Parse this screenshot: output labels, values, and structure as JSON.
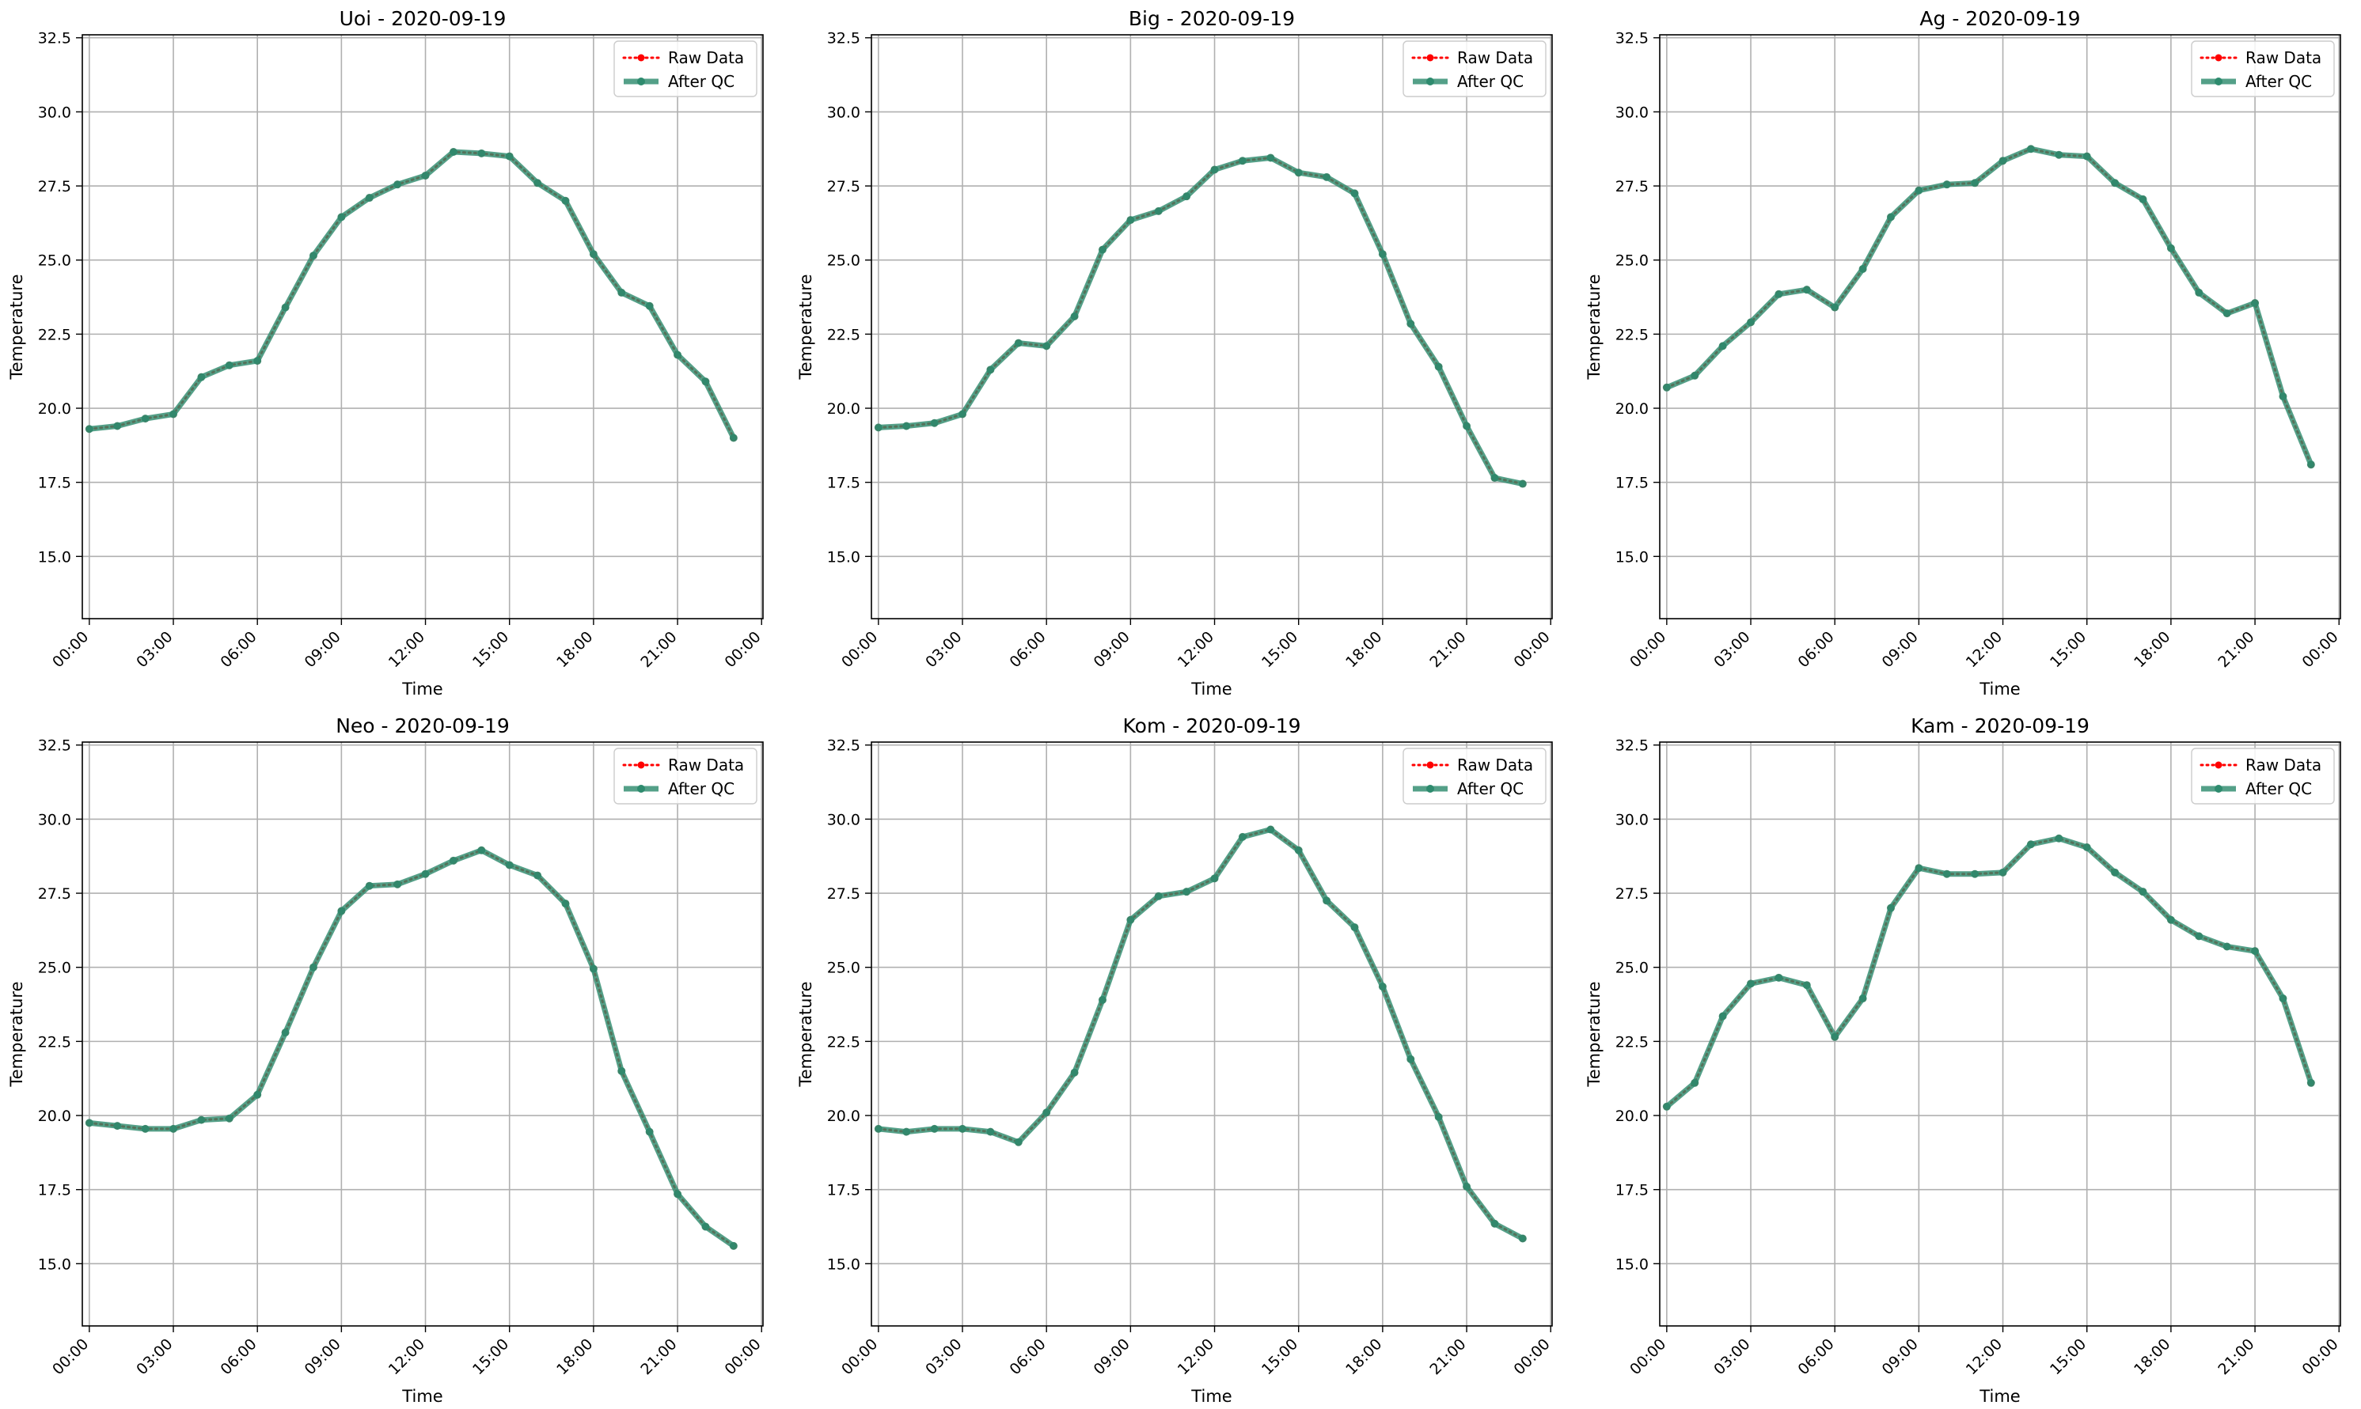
{
  "figure": {
    "background": "#ffffff"
  },
  "style": {
    "raw_color": "#ff0000",
    "qc_color": "#2e8b6e",
    "grid_color": "#b0b0b0"
  },
  "chart_data": [
    {
      "type": "line",
      "title": "Uoi - 2020-09-19",
      "xlabel": "Time",
      "ylabel": "Temperature",
      "x_ticks": [
        "00:00",
        "03:00",
        "06:00",
        "09:00",
        "12:00",
        "15:00",
        "18:00",
        "21:00",
        "00:00"
      ],
      "y_ticks": [
        "15.0",
        "17.5",
        "20.0",
        "22.5",
        "25.0",
        "27.5",
        "30.0",
        "32.5"
      ],
      "xlim": [
        -0.25,
        24.05
      ],
      "ylim": [
        12.9,
        32.6
      ],
      "grid": true,
      "legend": "top-right",
      "x": [
        0,
        1,
        2,
        3,
        4,
        5,
        6,
        7,
        8,
        9,
        10,
        11,
        12,
        13,
        14,
        15,
        16,
        17,
        18,
        19,
        20,
        21,
        22,
        23
      ],
      "series": [
        {
          "name": "Raw Data",
          "style": "dotted",
          "marker": "dot",
          "values": [
            19.3,
            19.4,
            19.65,
            19.8,
            21.05,
            21.45,
            21.6,
            23.4,
            25.15,
            26.45,
            27.1,
            27.55,
            27.85,
            28.65,
            28.6,
            28.5,
            27.6,
            27.0,
            25.2,
            23.9,
            23.45,
            21.8,
            20.9,
            19.0
          ]
        },
        {
          "name": "After QC",
          "style": "solid",
          "marker": "dot",
          "values": [
            19.3,
            19.4,
            19.65,
            19.8,
            21.05,
            21.45,
            21.6,
            23.4,
            25.15,
            26.45,
            27.1,
            27.55,
            27.85,
            28.65,
            28.6,
            28.5,
            27.6,
            27.0,
            25.2,
            23.9,
            23.45,
            21.8,
            20.9,
            19.0
          ]
        }
      ]
    },
    {
      "type": "line",
      "title": "Big - 2020-09-19",
      "xlabel": "Time",
      "ylabel": "Temperature",
      "x_ticks": [
        "00:00",
        "03:00",
        "06:00",
        "09:00",
        "12:00",
        "15:00",
        "18:00",
        "21:00",
        "00:00"
      ],
      "y_ticks": [
        "15.0",
        "17.5",
        "20.0",
        "22.5",
        "25.0",
        "27.5",
        "30.0",
        "32.5"
      ],
      "xlim": [
        -0.25,
        24.05
      ],
      "ylim": [
        12.9,
        32.6
      ],
      "grid": true,
      "legend": "top-right",
      "x": [
        0,
        1,
        2,
        3,
        4,
        5,
        6,
        7,
        8,
        9,
        10,
        11,
        12,
        13,
        14,
        15,
        16,
        17,
        18,
        19,
        20,
        21,
        22,
        23
      ],
      "series": [
        {
          "name": "Raw Data",
          "style": "dotted",
          "marker": "dot",
          "values": [
            19.35,
            19.4,
            19.5,
            19.8,
            21.3,
            22.2,
            22.1,
            23.1,
            25.35,
            26.35,
            26.65,
            27.15,
            28.05,
            28.35,
            28.45,
            27.95,
            27.8,
            27.25,
            25.2,
            22.85,
            21.4,
            19.4,
            17.65,
            17.45
          ]
        },
        {
          "name": "After QC",
          "style": "solid",
          "marker": "dot",
          "values": [
            19.35,
            19.4,
            19.5,
            19.8,
            21.3,
            22.2,
            22.1,
            23.1,
            25.35,
            26.35,
            26.65,
            27.15,
            28.05,
            28.35,
            28.45,
            27.95,
            27.8,
            27.25,
            25.2,
            22.85,
            21.4,
            19.4,
            17.65,
            17.45
          ]
        }
      ]
    },
    {
      "type": "line",
      "title": "Ag - 2020-09-19",
      "xlabel": "Time",
      "ylabel": "Temperature",
      "x_ticks": [
        "00:00",
        "03:00",
        "06:00",
        "09:00",
        "12:00",
        "15:00",
        "18:00",
        "21:00",
        "00:00"
      ],
      "y_ticks": [
        "15.0",
        "17.5",
        "20.0",
        "22.5",
        "25.0",
        "27.5",
        "30.0",
        "32.5"
      ],
      "xlim": [
        -0.25,
        24.05
      ],
      "ylim": [
        12.9,
        32.6
      ],
      "grid": true,
      "legend": "top-right",
      "x": [
        0,
        1,
        2,
        3,
        4,
        5,
        6,
        7,
        8,
        9,
        10,
        11,
        12,
        13,
        14,
        15,
        16,
        17,
        18,
        19,
        20,
        21,
        22,
        23
      ],
      "series": [
        {
          "name": "Raw Data",
          "style": "dotted",
          "marker": "dot",
          "values": [
            20.7,
            21.1,
            22.1,
            22.9,
            23.85,
            24.0,
            23.4,
            24.7,
            26.45,
            27.35,
            27.55,
            27.6,
            28.35,
            28.75,
            28.55,
            28.5,
            27.6,
            27.05,
            25.4,
            23.9,
            23.2,
            23.55,
            20.4,
            18.1
          ]
        },
        {
          "name": "After QC",
          "style": "solid",
          "marker": "dot",
          "values": [
            20.7,
            21.1,
            22.1,
            22.9,
            23.85,
            24.0,
            23.4,
            24.7,
            26.45,
            27.35,
            27.55,
            27.6,
            28.35,
            28.75,
            28.55,
            28.5,
            27.6,
            27.05,
            25.4,
            23.9,
            23.2,
            23.55,
            20.4,
            18.1
          ]
        }
      ]
    },
    {
      "type": "line",
      "title": "Neo - 2020-09-19",
      "xlabel": "Time",
      "ylabel": "Temperature",
      "x_ticks": [
        "00:00",
        "03:00",
        "06:00",
        "09:00",
        "12:00",
        "15:00",
        "18:00",
        "21:00",
        "00:00"
      ],
      "y_ticks": [
        "15.0",
        "17.5",
        "20.0",
        "22.5",
        "25.0",
        "27.5",
        "30.0",
        "32.5"
      ],
      "xlim": [
        -0.25,
        24.05
      ],
      "ylim": [
        12.9,
        32.6
      ],
      "grid": true,
      "legend": "top-right",
      "x": [
        0,
        1,
        2,
        3,
        4,
        5,
        6,
        7,
        8,
        9,
        10,
        11,
        12,
        13,
        14,
        15,
        16,
        17,
        18,
        19,
        20,
        21,
        22,
        23
      ],
      "series": [
        {
          "name": "Raw Data",
          "style": "dotted",
          "marker": "dot",
          "values": [
            19.75,
            19.65,
            19.55,
            19.55,
            19.85,
            19.9,
            20.7,
            22.8,
            25.0,
            26.9,
            27.75,
            27.8,
            28.15,
            28.6,
            28.95,
            28.45,
            28.1,
            27.15,
            24.95,
            21.5,
            19.45,
            17.35,
            16.25,
            15.6
          ]
        },
        {
          "name": "After QC",
          "style": "solid",
          "marker": "dot",
          "values": [
            19.75,
            19.65,
            19.55,
            19.55,
            19.85,
            19.9,
            20.7,
            22.8,
            25.0,
            26.9,
            27.75,
            27.8,
            28.15,
            28.6,
            28.95,
            28.45,
            28.1,
            27.15,
            24.95,
            21.5,
            19.45,
            17.35,
            16.25,
            15.6
          ]
        }
      ]
    },
    {
      "type": "line",
      "title": "Kom - 2020-09-19",
      "xlabel": "Time",
      "ylabel": "Temperature",
      "x_ticks": [
        "00:00",
        "03:00",
        "06:00",
        "09:00",
        "12:00",
        "15:00",
        "18:00",
        "21:00",
        "00:00"
      ],
      "y_ticks": [
        "15.0",
        "17.5",
        "20.0",
        "22.5",
        "25.0",
        "27.5",
        "30.0",
        "32.5"
      ],
      "xlim": [
        -0.25,
        24.05
      ],
      "ylim": [
        12.9,
        32.6
      ],
      "grid": true,
      "legend": "top-right",
      "x": [
        0,
        1,
        2,
        3,
        4,
        5,
        6,
        7,
        8,
        9,
        10,
        11,
        12,
        13,
        14,
        15,
        16,
        17,
        18,
        19,
        20,
        21,
        22,
        23
      ],
      "series": [
        {
          "name": "Raw Data",
          "style": "dotted",
          "marker": "dot",
          "values": [
            19.55,
            19.45,
            19.55,
            19.55,
            19.45,
            19.1,
            20.1,
            21.45,
            23.9,
            26.6,
            27.4,
            27.55,
            28.0,
            29.4,
            29.65,
            28.95,
            27.25,
            26.35,
            24.35,
            21.9,
            19.95,
            17.6,
            16.35,
            15.85
          ]
        },
        {
          "name": "After QC",
          "style": "solid",
          "marker": "dot",
          "values": [
            19.55,
            19.45,
            19.55,
            19.55,
            19.45,
            19.1,
            20.1,
            21.45,
            23.9,
            26.6,
            27.4,
            27.55,
            28.0,
            29.4,
            29.65,
            28.95,
            27.25,
            26.35,
            24.35,
            21.9,
            19.95,
            17.6,
            16.35,
            15.85
          ]
        }
      ]
    },
    {
      "type": "line",
      "title": "Kam - 2020-09-19",
      "xlabel": "Time",
      "ylabel": "Temperature",
      "x_ticks": [
        "00:00",
        "03:00",
        "06:00",
        "09:00",
        "12:00",
        "15:00",
        "18:00",
        "21:00",
        "00:00"
      ],
      "y_ticks": [
        "15.0",
        "17.5",
        "20.0",
        "22.5",
        "25.0",
        "27.5",
        "30.0",
        "32.5"
      ],
      "xlim": [
        -0.25,
        24.05
      ],
      "ylim": [
        12.9,
        32.6
      ],
      "grid": true,
      "legend": "top-right",
      "x": [
        0,
        1,
        2,
        3,
        4,
        5,
        6,
        7,
        8,
        9,
        10,
        11,
        12,
        13,
        14,
        15,
        16,
        17,
        18,
        19,
        20,
        21,
        22,
        23
      ],
      "series": [
        {
          "name": "Raw Data",
          "style": "dotted",
          "marker": "dot",
          "values": [
            20.3,
            21.1,
            23.35,
            24.45,
            24.65,
            24.4,
            22.65,
            23.95,
            27.0,
            28.35,
            28.15,
            28.15,
            28.2,
            29.15,
            29.35,
            29.05,
            28.2,
            27.55,
            26.6,
            26.05,
            25.7,
            25.55,
            23.95,
            21.1
          ]
        },
        {
          "name": "After QC",
          "style": "solid",
          "marker": "dot",
          "values": [
            20.3,
            21.1,
            23.35,
            24.45,
            24.65,
            24.4,
            22.65,
            23.95,
            27.0,
            28.35,
            28.15,
            28.15,
            28.2,
            29.15,
            29.35,
            29.05,
            28.2,
            27.55,
            26.6,
            26.05,
            25.7,
            25.55,
            23.95,
            21.1
          ]
        }
      ]
    }
  ]
}
